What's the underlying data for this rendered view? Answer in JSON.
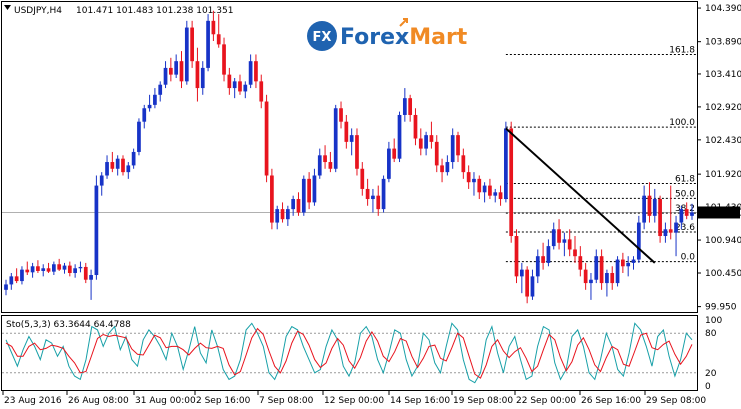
{
  "header": {
    "symbol": "USDJPY,H4",
    "ohlc": "101.471 101.483 101.238 101.351"
  },
  "logo": {
    "mark": "FX",
    "brand_a": "Forex",
    "brand_b": "Mart",
    "colors": {
      "blue": "#1f63b0",
      "orange": "#f08a24"
    }
  },
  "price_axis": {
    "ticks": [
      "104.390",
      "103.890",
      "103.410",
      "102.920",
      "102.430",
      "101.920",
      "101.430",
      "100.940",
      "100.450",
      "99.950"
    ],
    "current_price": "101.351"
  },
  "time_axis": {
    "labels": [
      "23 Aug 2016",
      "26 Aug 08:00",
      "31 Aug 00:00",
      "2 Sep 16:00",
      "7 Sep 08:00",
      "12 Sep 00:00",
      "14 Sep 16:00",
      "19 Sep 08:00",
      "22 Sep 00:00",
      "26 Sep 16:00",
      "29 Sep 08:00"
    ]
  },
  "fibonacci": {
    "levels": [
      {
        "label": "161.8",
        "price": 103.7
      },
      {
        "label": "100.0",
        "price": 102.62
      },
      {
        "label": "61.8",
        "price": 101.78
      },
      {
        "label": "50.0",
        "price": 101.56
      },
      {
        "label": "38.2",
        "price": 101.34
      },
      {
        "label": "23.6",
        "price": 101.06
      },
      {
        "label": "0.0",
        "price": 100.62
      }
    ]
  },
  "indicator": {
    "label": "Sto(5,3,3) 63.3644 64.4788",
    "scale_labels": [
      "100",
      "80",
      "20",
      "0"
    ],
    "main_color": "#18a0a8",
    "signal_color": "#e8141e"
  },
  "chart_data": {
    "type": "candlestick",
    "symbol": "USDJPY",
    "timeframe": "H4",
    "y_range": [
      99.87,
      104.48
    ],
    "candles": [
      {
        "o": 100.2,
        "h": 100.35,
        "l": 100.12,
        "c": 100.28
      },
      {
        "o": 100.28,
        "h": 100.45,
        "l": 100.2,
        "c": 100.4
      },
      {
        "o": 100.4,
        "h": 100.52,
        "l": 100.3,
        "c": 100.33
      },
      {
        "o": 100.33,
        "h": 100.55,
        "l": 100.28,
        "c": 100.5
      },
      {
        "o": 100.5,
        "h": 100.62,
        "l": 100.42,
        "c": 100.46
      },
      {
        "o": 100.46,
        "h": 100.6,
        "l": 100.38,
        "c": 100.55
      },
      {
        "o": 100.55,
        "h": 100.64,
        "l": 100.45,
        "c": 100.48
      },
      {
        "o": 100.48,
        "h": 100.58,
        "l": 100.4,
        "c": 100.52
      },
      {
        "o": 100.52,
        "h": 100.6,
        "l": 100.45,
        "c": 100.47
      },
      {
        "o": 100.47,
        "h": 100.62,
        "l": 100.42,
        "c": 100.58
      },
      {
        "o": 100.58,
        "h": 100.66,
        "l": 100.48,
        "c": 100.5
      },
      {
        "o": 100.5,
        "h": 100.6,
        "l": 100.44,
        "c": 100.56
      },
      {
        "o": 100.56,
        "h": 100.62,
        "l": 100.4,
        "c": 100.45
      },
      {
        "o": 100.45,
        "h": 100.58,
        "l": 100.38,
        "c": 100.52
      },
      {
        "o": 100.52,
        "h": 100.62,
        "l": 100.46,
        "c": 100.54
      },
      {
        "o": 100.54,
        "h": 100.6,
        "l": 100.3,
        "c": 100.35
      },
      {
        "o": 100.35,
        "h": 100.5,
        "l": 100.05,
        "c": 100.42
      },
      {
        "o": 100.42,
        "h": 101.9,
        "l": 100.35,
        "c": 101.75
      },
      {
        "o": 101.75,
        "h": 101.95,
        "l": 101.6,
        "c": 101.9
      },
      {
        "o": 101.9,
        "h": 102.2,
        "l": 101.85,
        "c": 102.1
      },
      {
        "o": 102.1,
        "h": 102.25,
        "l": 101.95,
        "c": 102.0
      },
      {
        "o": 102.0,
        "h": 102.2,
        "l": 101.9,
        "c": 102.15
      },
      {
        "o": 102.15,
        "h": 102.2,
        "l": 101.9,
        "c": 101.95
      },
      {
        "o": 101.95,
        "h": 102.1,
        "l": 101.85,
        "c": 102.05
      },
      {
        "o": 102.05,
        "h": 102.3,
        "l": 102.0,
        "c": 102.25
      },
      {
        "o": 102.25,
        "h": 102.75,
        "l": 102.2,
        "c": 102.7
      },
      {
        "o": 102.7,
        "h": 102.95,
        "l": 102.6,
        "c": 102.9
      },
      {
        "o": 102.9,
        "h": 103.1,
        "l": 102.85,
        "c": 102.95
      },
      {
        "o": 102.95,
        "h": 103.2,
        "l": 102.9,
        "c": 103.1
      },
      {
        "o": 103.1,
        "h": 103.3,
        "l": 103.0,
        "c": 103.25
      },
      {
        "o": 103.25,
        "h": 103.6,
        "l": 103.2,
        "c": 103.5
      },
      {
        "o": 103.5,
        "h": 103.65,
        "l": 103.3,
        "c": 103.4
      },
      {
        "o": 103.4,
        "h": 103.7,
        "l": 103.35,
        "c": 103.6
      },
      {
        "o": 103.6,
        "h": 103.75,
        "l": 103.2,
        "c": 103.3
      },
      {
        "o": 103.3,
        "h": 104.2,
        "l": 103.25,
        "c": 104.1
      },
      {
        "o": 104.1,
        "h": 104.2,
        "l": 103.5,
        "c": 103.6
      },
      {
        "o": 103.6,
        "h": 103.8,
        "l": 103.0,
        "c": 103.2
      },
      {
        "o": 103.2,
        "h": 103.6,
        "l": 103.1,
        "c": 103.5
      },
      {
        "o": 103.5,
        "h": 104.3,
        "l": 103.45,
        "c": 104.2
      },
      {
        "o": 104.2,
        "h": 104.35,
        "l": 103.9,
        "c": 104.0
      },
      {
        "o": 104.0,
        "h": 104.3,
        "l": 103.8,
        "c": 103.85
      },
      {
        "o": 103.85,
        "h": 103.95,
        "l": 103.3,
        "c": 103.4
      },
      {
        "o": 103.4,
        "h": 103.5,
        "l": 103.1,
        "c": 103.2
      },
      {
        "o": 103.2,
        "h": 103.35,
        "l": 103.05,
        "c": 103.3
      },
      {
        "o": 103.3,
        "h": 103.4,
        "l": 103.1,
        "c": 103.15
      },
      {
        "o": 103.15,
        "h": 103.3,
        "l": 103.05,
        "c": 103.25
      },
      {
        "o": 103.25,
        "h": 103.7,
        "l": 103.2,
        "c": 103.6
      },
      {
        "o": 103.6,
        "h": 103.7,
        "l": 103.2,
        "c": 103.3
      },
      {
        "o": 103.3,
        "h": 103.4,
        "l": 102.9,
        "c": 103.0
      },
      {
        "o": 103.0,
        "h": 103.1,
        "l": 101.8,
        "c": 101.9
      },
      {
        "o": 101.9,
        "h": 102.0,
        "l": 101.1,
        "c": 101.2
      },
      {
        "o": 101.2,
        "h": 101.45,
        "l": 101.1,
        "c": 101.4
      },
      {
        "o": 101.4,
        "h": 101.5,
        "l": 101.2,
        "c": 101.25
      },
      {
        "o": 101.25,
        "h": 101.45,
        "l": 101.15,
        "c": 101.4
      },
      {
        "o": 101.4,
        "h": 101.6,
        "l": 101.3,
        "c": 101.55
      },
      {
        "o": 101.55,
        "h": 101.65,
        "l": 101.3,
        "c": 101.35
      },
      {
        "o": 101.35,
        "h": 101.9,
        "l": 101.3,
        "c": 101.85
      },
      {
        "o": 101.85,
        "h": 101.95,
        "l": 101.4,
        "c": 101.5
      },
      {
        "o": 101.5,
        "h": 102.0,
        "l": 101.45,
        "c": 101.9
      },
      {
        "o": 101.9,
        "h": 102.3,
        "l": 101.85,
        "c": 102.2
      },
      {
        "o": 102.2,
        "h": 102.35,
        "l": 102.0,
        "c": 102.1
      },
      {
        "o": 102.1,
        "h": 102.25,
        "l": 101.95,
        "c": 102.0
      },
      {
        "o": 102.0,
        "h": 102.95,
        "l": 101.95,
        "c": 102.9
      },
      {
        "o": 102.9,
        "h": 103.0,
        "l": 102.6,
        "c": 102.7
      },
      {
        "o": 102.7,
        "h": 102.8,
        "l": 102.3,
        "c": 102.4
      },
      {
        "o": 102.4,
        "h": 102.6,
        "l": 102.2,
        "c": 102.5
      },
      {
        "o": 102.5,
        "h": 102.6,
        "l": 101.9,
        "c": 102.0
      },
      {
        "o": 102.0,
        "h": 102.1,
        "l": 101.6,
        "c": 101.7
      },
      {
        "o": 101.7,
        "h": 101.85,
        "l": 101.45,
        "c": 101.55
      },
      {
        "o": 101.55,
        "h": 101.7,
        "l": 101.35,
        "c": 101.6
      },
      {
        "o": 101.6,
        "h": 101.75,
        "l": 101.3,
        "c": 101.4
      },
      {
        "o": 101.4,
        "h": 101.9,
        "l": 101.35,
        "c": 101.85
      },
      {
        "o": 101.85,
        "h": 102.4,
        "l": 101.8,
        "c": 102.3
      },
      {
        "o": 102.3,
        "h": 102.45,
        "l": 102.1,
        "c": 102.15
      },
      {
        "o": 102.15,
        "h": 102.85,
        "l": 102.1,
        "c": 102.8
      },
      {
        "o": 102.8,
        "h": 103.2,
        "l": 102.7,
        "c": 103.05
      },
      {
        "o": 103.05,
        "h": 103.1,
        "l": 102.7,
        "c": 102.8
      },
      {
        "o": 102.8,
        "h": 102.9,
        "l": 102.35,
        "c": 102.45
      },
      {
        "o": 102.45,
        "h": 102.6,
        "l": 102.2,
        "c": 102.3
      },
      {
        "o": 102.3,
        "h": 102.55,
        "l": 102.2,
        "c": 102.5
      },
      {
        "o": 102.5,
        "h": 102.7,
        "l": 102.3,
        "c": 102.4
      },
      {
        "o": 102.4,
        "h": 102.5,
        "l": 101.95,
        "c": 102.05
      },
      {
        "o": 102.05,
        "h": 102.15,
        "l": 101.8,
        "c": 101.95
      },
      {
        "o": 101.95,
        "h": 102.2,
        "l": 101.9,
        "c": 102.1
      },
      {
        "o": 102.1,
        "h": 102.6,
        "l": 102.0,
        "c": 102.5
      },
      {
        "o": 102.5,
        "h": 102.55,
        "l": 102.1,
        "c": 102.2
      },
      {
        "o": 102.2,
        "h": 102.3,
        "l": 101.85,
        "c": 101.95
      },
      {
        "o": 101.95,
        "h": 102.05,
        "l": 101.7,
        "c": 101.8
      },
      {
        "o": 101.8,
        "h": 101.95,
        "l": 101.6,
        "c": 101.85
      },
      {
        "o": 101.85,
        "h": 101.9,
        "l": 101.55,
        "c": 101.65
      },
      {
        "o": 101.65,
        "h": 101.8,
        "l": 101.5,
        "c": 101.75
      },
      {
        "o": 101.75,
        "h": 101.85,
        "l": 101.55,
        "c": 101.6
      },
      {
        "o": 101.6,
        "h": 101.7,
        "l": 101.5,
        "c": 101.65
      },
      {
        "o": 101.65,
        "h": 101.75,
        "l": 101.45,
        "c": 101.55
      },
      {
        "o": 101.55,
        "h": 102.7,
        "l": 101.5,
        "c": 102.6
      },
      {
        "o": 102.6,
        "h": 102.7,
        "l": 100.9,
        "c": 101.0
      },
      {
        "o": 101.0,
        "h": 101.1,
        "l": 100.3,
        "c": 100.4
      },
      {
        "o": 100.4,
        "h": 100.6,
        "l": 100.15,
        "c": 100.5
      },
      {
        "o": 100.5,
        "h": 100.55,
        "l": 100.0,
        "c": 100.1
      },
      {
        "o": 100.1,
        "h": 100.5,
        "l": 100.05,
        "c": 100.4
      },
      {
        "o": 100.4,
        "h": 100.8,
        "l": 100.3,
        "c": 100.7
      },
      {
        "o": 100.7,
        "h": 100.9,
        "l": 100.5,
        "c": 100.6
      },
      {
        "o": 100.6,
        "h": 100.95,
        "l": 100.55,
        "c": 100.85
      },
      {
        "o": 100.85,
        "h": 101.2,
        "l": 100.8,
        "c": 101.1
      },
      {
        "o": 101.1,
        "h": 101.25,
        "l": 100.8,
        "c": 100.9
      },
      {
        "o": 100.9,
        "h": 101.05,
        "l": 100.7,
        "c": 100.95
      },
      {
        "o": 100.95,
        "h": 101.1,
        "l": 100.7,
        "c": 100.8
      },
      {
        "o": 100.8,
        "h": 101.0,
        "l": 100.6,
        "c": 100.7
      },
      {
        "o": 100.7,
        "h": 100.85,
        "l": 100.4,
        "c": 100.5
      },
      {
        "o": 100.5,
        "h": 100.6,
        "l": 100.2,
        "c": 100.3
      },
      {
        "o": 100.3,
        "h": 100.45,
        "l": 100.05,
        "c": 100.35
      },
      {
        "o": 100.35,
        "h": 100.8,
        "l": 100.3,
        "c": 100.7
      },
      {
        "o": 100.7,
        "h": 100.8,
        "l": 100.2,
        "c": 100.3
      },
      {
        "o": 100.3,
        "h": 100.5,
        "l": 100.1,
        "c": 100.45
      },
      {
        "o": 100.45,
        "h": 100.55,
        "l": 100.2,
        "c": 100.3
      },
      {
        "o": 100.3,
        "h": 100.7,
        "l": 100.25,
        "c": 100.65
      },
      {
        "o": 100.65,
        "h": 100.75,
        "l": 100.45,
        "c": 100.55
      },
      {
        "o": 100.55,
        "h": 100.7,
        "l": 100.4,
        "c": 100.6
      },
      {
        "o": 100.6,
        "h": 100.7,
        "l": 100.5,
        "c": 100.65
      },
      {
        "o": 100.65,
        "h": 101.3,
        "l": 100.6,
        "c": 101.2
      },
      {
        "o": 101.2,
        "h": 101.75,
        "l": 101.1,
        "c": 101.6
      },
      {
        "o": 101.6,
        "h": 101.8,
        "l": 101.2,
        "c": 101.3
      },
      {
        "o": 101.3,
        "h": 101.7,
        "l": 101.2,
        "c": 101.55
      },
      {
        "o": 101.55,
        "h": 101.6,
        "l": 100.9,
        "c": 101.0
      },
      {
        "o": 101.0,
        "h": 101.2,
        "l": 100.9,
        "c": 101.1
      },
      {
        "o": 101.1,
        "h": 101.75,
        "l": 100.95,
        "c": 101.05
      },
      {
        "o": 101.05,
        "h": 101.3,
        "l": 100.7,
        "c": 101.2
      },
      {
        "o": 101.2,
        "h": 101.45,
        "l": 101.1,
        "c": 101.4
      },
      {
        "o": 101.4,
        "h": 101.5,
        "l": 101.25,
        "c": 101.3
      },
      {
        "o": 101.3,
        "h": 101.48,
        "l": 101.24,
        "c": 101.35
      }
    ],
    "fib_anchor": {
      "start_index": 94,
      "start_price": 102.6,
      "end_index": 122,
      "end_price": 100.6
    },
    "stochastic": {
      "main": [
        70,
        50,
        30,
        55,
        75,
        60,
        40,
        70,
        65,
        45,
        60,
        30,
        15,
        10,
        40,
        90,
        85,
        60,
        80,
        90,
        55,
        75,
        40,
        30,
        70,
        85,
        75,
        60,
        40,
        80,
        60,
        25,
        55,
        90,
        50,
        35,
        85,
        60,
        25,
        10,
        15,
        40,
        85,
        95,
        80,
        60,
        20,
        10,
        30,
        75,
        90,
        85,
        60,
        40,
        20,
        25,
        60,
        85,
        70,
        30,
        15,
        35,
        80,
        90,
        75,
        40,
        20,
        50,
        85,
        80,
        40,
        15,
        30,
        80,
        70,
        35,
        20,
        60,
        95,
        85,
        40,
        10,
        5,
        20,
        70,
        90,
        50,
        20,
        60,
        75,
        40,
        10,
        15,
        60,
        90,
        85,
        35,
        10,
        25,
        75,
        85,
        60,
        20,
        10,
        40,
        80,
        60,
        25,
        15,
        50,
        95,
        85,
        60,
        30,
        75,
        85,
        45,
        15,
        40,
        80,
        70
      ],
      "signal": [
        65,
        60,
        45,
        45,
        60,
        65,
        55,
        57,
        62,
        60,
        57,
        45,
        35,
        20,
        22,
        47,
        72,
        78,
        75,
        77,
        75,
        73,
        56,
        48,
        47,
        62,
        77,
        73,
        58,
        60,
        60,
        55,
        47,
        57,
        65,
        58,
        57,
        60,
        57,
        32,
        17,
        22,
        47,
        73,
        87,
        78,
        53,
        30,
        20,
        38,
        65,
        83,
        78,
        62,
        40,
        28,
        35,
        57,
        72,
        62,
        38,
        27,
        43,
        68,
        82,
        68,
        45,
        37,
        52,
        72,
        68,
        45,
        28,
        42,
        60,
        62,
        42,
        38,
        58,
        80,
        73,
        45,
        18,
        12,
        32,
        60,
        70,
        53,
        43,
        52,
        58,
        42,
        22,
        30,
        55,
        78,
        70,
        43,
        23,
        37,
        62,
        73,
        55,
        32,
        22,
        43,
        60,
        55,
        33,
        30,
        53,
        77,
        80,
        58,
        55,
        63,
        68,
        48,
        33,
        45,
        63
      ]
    }
  }
}
